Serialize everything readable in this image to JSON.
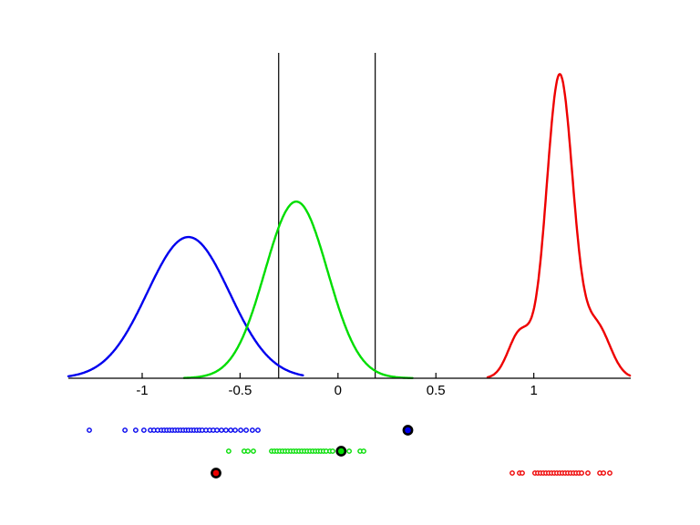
{
  "figure": {
    "background": "#ffffff",
    "axis_color": "#000000",
    "colors": {
      "class_blue": "#0000ee",
      "class_green": "#00dd00",
      "class_red": "#ee0000",
      "marker_edge": "#000000"
    }
  },
  "chart_data": {
    "type": "line",
    "subtype": "kernel-density-curves-with-sample-strips",
    "title": "",
    "xlabel": "",
    "ylabel": "",
    "grid": false,
    "legend": null,
    "xlim": [
      -1.377,
      1.495
    ],
    "ylim_normalized": [
      0,
      1
    ],
    "x_ticks": {
      "values": [
        -1,
        -0.5,
        0,
        0.5,
        1
      ],
      "labels": [
        "-1",
        "-0.5",
        "0",
        "0.5",
        "1"
      ]
    },
    "threshold_lines": {
      "color": "#000000",
      "x_values": [
        -0.303,
        0.19
      ]
    },
    "density_curves": [
      {
        "name": "blue-density",
        "color": "#0000ee",
        "range": [
          -1.377,
          -0.175
        ],
        "peak_x": -0.764,
        "peak_height": 0.434,
        "components": [
          {
            "mu": -0.764,
            "sigma": 0.21,
            "amp": 0.434
          }
        ]
      },
      {
        "name": "green-density",
        "color": "#00dd00",
        "range": [
          -0.786,
          0.383
        ],
        "peak_x": -0.213,
        "peak_height": 0.543,
        "components": [
          {
            "mu": -0.213,
            "sigma": 0.16,
            "amp": 0.543
          }
        ]
      },
      {
        "name": "red-density",
        "color": "#ee0000",
        "range": [
          0.764,
          1.495
        ],
        "peak_x": 1.132,
        "peak_height": 0.94,
        "components": [
          {
            "mu": 1.132,
            "sigma": 0.068,
            "amp": 0.93
          },
          {
            "mu": 0.93,
            "sigma": 0.06,
            "amp": 0.14
          },
          {
            "mu": 1.32,
            "sigma": 0.07,
            "amp": 0.16
          }
        ]
      }
    ],
    "sample_rows": [
      {
        "name": "blue-samples",
        "color": "#0000ee",
        "row": 1,
        "x": [
          -1.27,
          -1.088,
          -1.033,
          -0.991,
          -0.958,
          -0.94,
          -0.921,
          -0.902,
          -0.888,
          -0.874,
          -0.86,
          -0.846,
          -0.832,
          -0.818,
          -0.804,
          -0.79,
          -0.776,
          -0.763,
          -0.749,
          -0.735,
          -0.721,
          -0.707,
          -0.693,
          -0.674,
          -0.655,
          -0.637,
          -0.618,
          -0.595,
          -0.572,
          -0.548,
          -0.525,
          -0.497,
          -0.469,
          -0.437,
          -0.409
        ]
      },
      {
        "name": "green-samples",
        "color": "#00dd00",
        "row": 2,
        "x": [
          -0.558,
          -0.479,
          -0.46,
          -0.432,
          -0.339,
          -0.325,
          -0.311,
          -0.297,
          -0.283,
          -0.269,
          -0.255,
          -0.241,
          -0.227,
          -0.213,
          -0.199,
          -0.185,
          -0.171,
          -0.157,
          -0.143,
          -0.129,
          -0.115,
          -0.101,
          -0.088,
          -0.074,
          -0.06,
          -0.041,
          -0.027,
          0.057,
          0.113,
          0.131
        ]
      },
      {
        "name": "red-samples",
        "color": "#ee0000",
        "row": 3,
        "x": [
          0.89,
          0.927,
          0.941,
          1.006,
          1.02,
          1.034,
          1.048,
          1.062,
          1.076,
          1.09,
          1.104,
          1.118,
          1.132,
          1.146,
          1.16,
          1.174,
          1.188,
          1.202,
          1.216,
          1.23,
          1.244,
          1.276,
          1.337,
          1.356,
          1.388
        ]
      }
    ],
    "marked_points": [
      {
        "name": "blue-marked-point",
        "color": "#0000ee",
        "row": 1,
        "x": 0.357
      },
      {
        "name": "green-marked-point",
        "color": "#00dd00",
        "row": 2,
        "x": 0.016
      },
      {
        "name": "red-marked-point",
        "color": "#ee0000",
        "row": 3,
        "x": -0.623
      }
    ]
  }
}
